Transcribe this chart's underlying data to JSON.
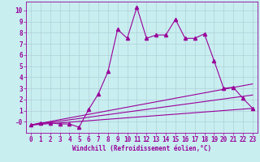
{
  "background_color": "#c8eef0",
  "grid_color": "#b0d0d8",
  "line_color": "#990099",
  "x_label": "Windchill (Refroidissement éolien,°C)",
  "xlim": [
    -0.5,
    23.5
  ],
  "ylim": [
    -1.0,
    10.8
  ],
  "x_ticks": [
    0,
    1,
    2,
    3,
    4,
    5,
    6,
    7,
    8,
    9,
    10,
    11,
    12,
    13,
    14,
    15,
    16,
    17,
    18,
    19,
    20,
    21,
    22,
    23
  ],
  "y_ticks": [
    0,
    1,
    2,
    3,
    4,
    5,
    6,
    7,
    8,
    9,
    10
  ],
  "line1_x": [
    0,
    1,
    2,
    3,
    4,
    5,
    6,
    7,
    8,
    9,
    10,
    11,
    12,
    13,
    14,
    15,
    16,
    17,
    18,
    19,
    20,
    21,
    22,
    23
  ],
  "line1_y": [
    -0.3,
    -0.1,
    -0.1,
    -0.2,
    -0.2,
    -0.5,
    1.1,
    2.5,
    4.5,
    8.3,
    7.5,
    10.3,
    7.5,
    7.8,
    7.8,
    9.2,
    7.5,
    7.5,
    7.9,
    5.5,
    3.0,
    3.1,
    2.1,
    1.2
  ],
  "line2_x": [
    0,
    23
  ],
  "line2_y": [
    -0.3,
    1.2
  ],
  "line3_x": [
    0,
    23
  ],
  "line3_y": [
    -0.3,
    3.4
  ],
  "line4_x": [
    0,
    23
  ],
  "line4_y": [
    -0.3,
    2.4
  ],
  "marker": "^",
  "markersize": 3,
  "linewidth": 0.8,
  "tick_labelsize": 5.5,
  "xlabel_fontsize": 5.5
}
